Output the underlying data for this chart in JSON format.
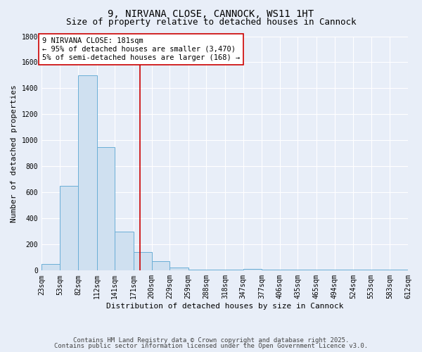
{
  "title": "9, NIRVANA CLOSE, CANNOCK, WS11 1HT",
  "subtitle": "Size of property relative to detached houses in Cannock",
  "xlabel": "Distribution of detached houses by size in Cannock",
  "ylabel": "Number of detached properties",
  "bin_edges": [
    23,
    53,
    82,
    112,
    141,
    171,
    200,
    229,
    259,
    288,
    318,
    347,
    377,
    406,
    435,
    465,
    494,
    524,
    553,
    583,
    612
  ],
  "bin_counts": [
    50,
    650,
    1500,
    950,
    300,
    140,
    70,
    25,
    5,
    5,
    5,
    15,
    5,
    5,
    5,
    5,
    5,
    5,
    5,
    5
  ],
  "bar_color": "#cfe0f0",
  "bar_edge_color": "#6aaed6",
  "bg_color": "#e8eef8",
  "grid_color": "#ffffff",
  "vline_x": 181,
  "vline_color": "#cc0000",
  "annotation_text": "9 NIRVANA CLOSE: 181sqm\n← 95% of detached houses are smaller (3,470)\n5% of semi-detached houses are larger (168) →",
  "annotation_box_color": "#ffffff",
  "annotation_box_edge": "#cc0000",
  "ylim": [
    0,
    1800
  ],
  "yticks": [
    0,
    200,
    400,
    600,
    800,
    1000,
    1200,
    1400,
    1600,
    1800
  ],
  "footer_line1": "Contains HM Land Registry data © Crown copyright and database right 2025.",
  "footer_line2": "Contains public sector information licensed under the Open Government Licence v3.0.",
  "title_fontsize": 10,
  "subtitle_fontsize": 9,
  "label_fontsize": 8,
  "tick_fontsize": 7,
  "annotation_fontsize": 7.5,
  "footer_fontsize": 6.5
}
